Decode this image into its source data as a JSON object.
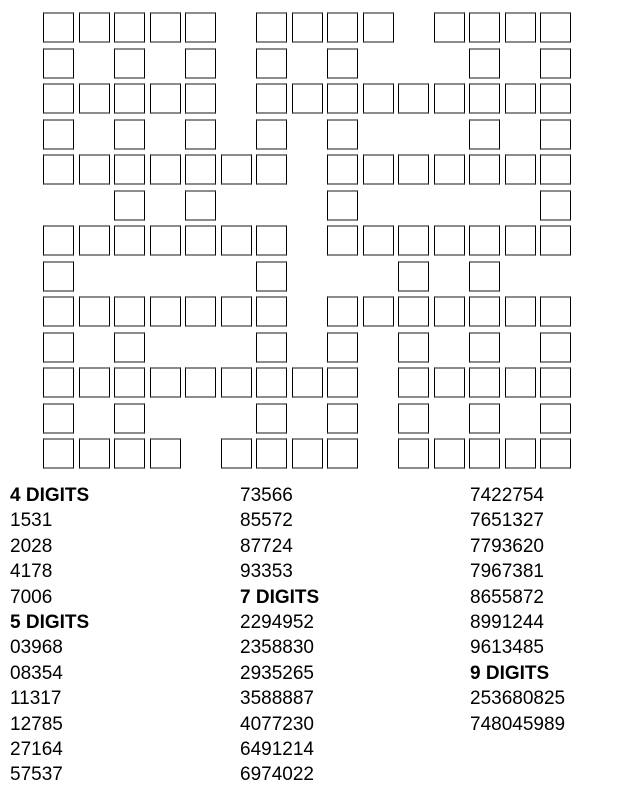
{
  "puzzle": {
    "grid": {
      "rows": 13,
      "cols": 15,
      "filled_cells_by_row": [
        [
          0,
          1,
          2,
          3,
          4,
          6,
          7,
          8,
          9,
          11,
          12,
          13,
          14
        ],
        [
          0,
          2,
          4,
          6,
          8,
          12,
          14
        ],
        [
          0,
          1,
          2,
          3,
          4,
          6,
          7,
          8,
          9,
          10,
          11,
          12,
          13,
          14
        ],
        [
          0,
          2,
          4,
          6,
          8,
          12,
          14
        ],
        [
          0,
          1,
          2,
          3,
          4,
          5,
          6,
          8,
          9,
          10,
          11,
          12,
          13,
          14
        ],
        [
          2,
          4,
          8,
          14
        ],
        [
          0,
          1,
          2,
          3,
          4,
          5,
          6,
          8,
          9,
          10,
          11,
          12,
          13,
          14
        ],
        [
          0,
          6,
          10,
          12
        ],
        [
          0,
          1,
          2,
          3,
          4,
          5,
          6,
          8,
          9,
          10,
          11,
          12,
          13,
          14
        ],
        [
          0,
          2,
          6,
          8,
          10,
          12,
          14
        ],
        [
          0,
          1,
          2,
          3,
          4,
          5,
          6,
          7,
          8,
          10,
          11,
          12,
          13,
          14
        ],
        [
          0,
          2,
          6,
          8,
          10,
          12,
          14
        ],
        [
          0,
          1,
          2,
          3,
          5,
          6,
          7,
          8,
          10,
          11,
          12,
          13,
          14
        ]
      ]
    },
    "word_lists": {
      "columns": [
        {
          "entries": [
            {
              "text": "4 DIGITS",
              "header": true
            },
            {
              "text": "1531"
            },
            {
              "text": "2028"
            },
            {
              "text": "4178"
            },
            {
              "text": "7006"
            },
            {
              "text": "5 DIGITS",
              "header": true
            },
            {
              "text": "03968"
            },
            {
              "text": "08354"
            },
            {
              "text": "11317"
            },
            {
              "text": "12785"
            },
            {
              "text": "27164"
            },
            {
              "text": "57537"
            }
          ]
        },
        {
          "entries": [
            {
              "text": "73566"
            },
            {
              "text": "85572"
            },
            {
              "text": "87724"
            },
            {
              "text": "93353"
            },
            {
              "text": "7 DIGITS",
              "header": true
            },
            {
              "text": "2294952"
            },
            {
              "text": "2358830"
            },
            {
              "text": "2935265"
            },
            {
              "text": "3588887"
            },
            {
              "text": "4077230"
            },
            {
              "text": "6491214"
            },
            {
              "text": "6974022"
            }
          ]
        },
        {
          "entries": [
            {
              "text": "7422754"
            },
            {
              "text": "7651327"
            },
            {
              "text": "7793620"
            },
            {
              "text": "7967381"
            },
            {
              "text": "8655872"
            },
            {
              "text": "8991244"
            },
            {
              "text": "9613485"
            },
            {
              "text": "9 DIGITS",
              "header": true
            },
            {
              "text": "253680825"
            },
            {
              "text": "748045989"
            }
          ]
        }
      ]
    },
    "colors": {
      "page_background": "#ffffff",
      "cell_fill": "#ffffff",
      "cell_side_border": "#000000",
      "cell_top_bottom_border": "#8c8c8c",
      "text": "#000000"
    }
  }
}
